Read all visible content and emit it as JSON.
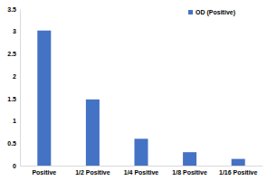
{
  "chart_data": {
    "type": "bar",
    "categories": [
      "Positive",
      "1/2 Positive",
      "1/4 Positive",
      "1/8 Positive",
      "1/16 Positive"
    ],
    "series": [
      {
        "name": "OD (Positive)",
        "color": "#4472c4",
        "values": [
          3.02,
          1.48,
          0.6,
          0.3,
          0.15
        ]
      }
    ],
    "ylim": [
      0,
      3.5
    ],
    "yticks": [
      0,
      0.5,
      1,
      1.5,
      2,
      2.5,
      3,
      3.5
    ],
    "grid": false,
    "legend": "top-right"
  }
}
